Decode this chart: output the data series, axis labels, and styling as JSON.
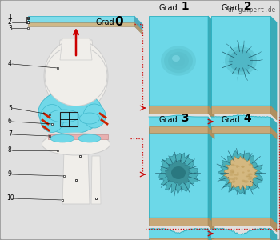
{
  "bg_color": "#e0e0e0",
  "border_color": "#999999",
  "panel_top_color": "#6cd8e8",
  "panel_side_color": "#3aabb8",
  "panel_bottom_color": "#c8a878",
  "watermark": "dr-gumpert.de",
  "arrow_color": "#cc0000",
  "number_labels": [
    "1",
    "2",
    "3",
    "4",
    "5",
    "6",
    "7",
    "8",
    "9",
    "10"
  ],
  "grad_labels": [
    "Grad 0",
    "Grad 1",
    "Grad 2",
    "Grad 3",
    "Grad 4"
  ],
  "white_bone": "#f0eeea",
  "cyan_cart": "#70d8e8",
  "red_lig": "#cc2200",
  "pink_menisc": "#e8b0b0"
}
